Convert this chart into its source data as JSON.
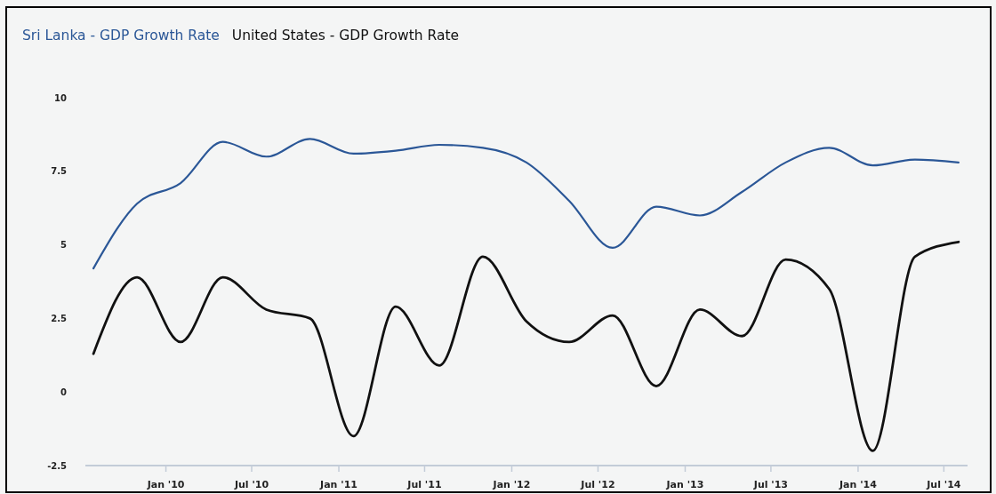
{
  "chart_data": {
    "type": "line",
    "x": [
      "2009-08",
      "2009-11",
      "2010-02",
      "2010-05",
      "2010-08",
      "2010-11",
      "2011-02",
      "2011-05",
      "2011-08",
      "2011-11",
      "2012-02",
      "2012-05",
      "2012-08",
      "2012-11",
      "2013-02",
      "2013-05",
      "2013-08",
      "2013-11",
      "2014-02",
      "2014-05",
      "2014-08"
    ],
    "series": [
      {
        "name": "Sri Lanka - GDP Growth Rate",
        "color": "#2b5797",
        "values": [
          4.2,
          6.4,
          7.1,
          8.5,
          8.0,
          8.6,
          8.1,
          8.2,
          8.4,
          8.3,
          7.8,
          6.5,
          4.9,
          6.3,
          6.0,
          6.8,
          7.8,
          8.3,
          7.7,
          7.9,
          7.8
        ]
      },
      {
        "name": "United States - GDP Growth Rate",
        "color": "#111111",
        "values": [
          1.3,
          3.9,
          1.7,
          3.9,
          2.8,
          2.5,
          -1.5,
          2.9,
          0.9,
          4.6,
          2.4,
          1.7,
          2.6,
          0.2,
          2.8,
          1.9,
          4.5,
          3.5,
          -2.0,
          4.6,
          5.1
        ]
      }
    ],
    "xlim": [
      "2009-07-15",
      "2014-08-20"
    ],
    "xticks": [
      {
        "value": "2010-01",
        "label": "Jan '10"
      },
      {
        "value": "2010-07",
        "label": "Jul '10"
      },
      {
        "value": "2011-01",
        "label": "Jan '11"
      },
      {
        "value": "2011-07",
        "label": "Jul '11"
      },
      {
        "value": "2012-01",
        "label": "Jan '12"
      },
      {
        "value": "2012-07",
        "label": "Jul '12"
      },
      {
        "value": "2013-01",
        "label": "Jan '13"
      },
      {
        "value": "2013-07",
        "label": "Jul '13"
      },
      {
        "value": "2014-01",
        "label": "Jan '14"
      },
      {
        "value": "2014-07",
        "label": "Jul '14"
      }
    ],
    "ylim": [
      -2.5,
      10
    ],
    "yticks": [
      -2.5,
      0,
      2.5,
      5,
      7.5,
      10
    ],
    "legend": "top left"
  }
}
